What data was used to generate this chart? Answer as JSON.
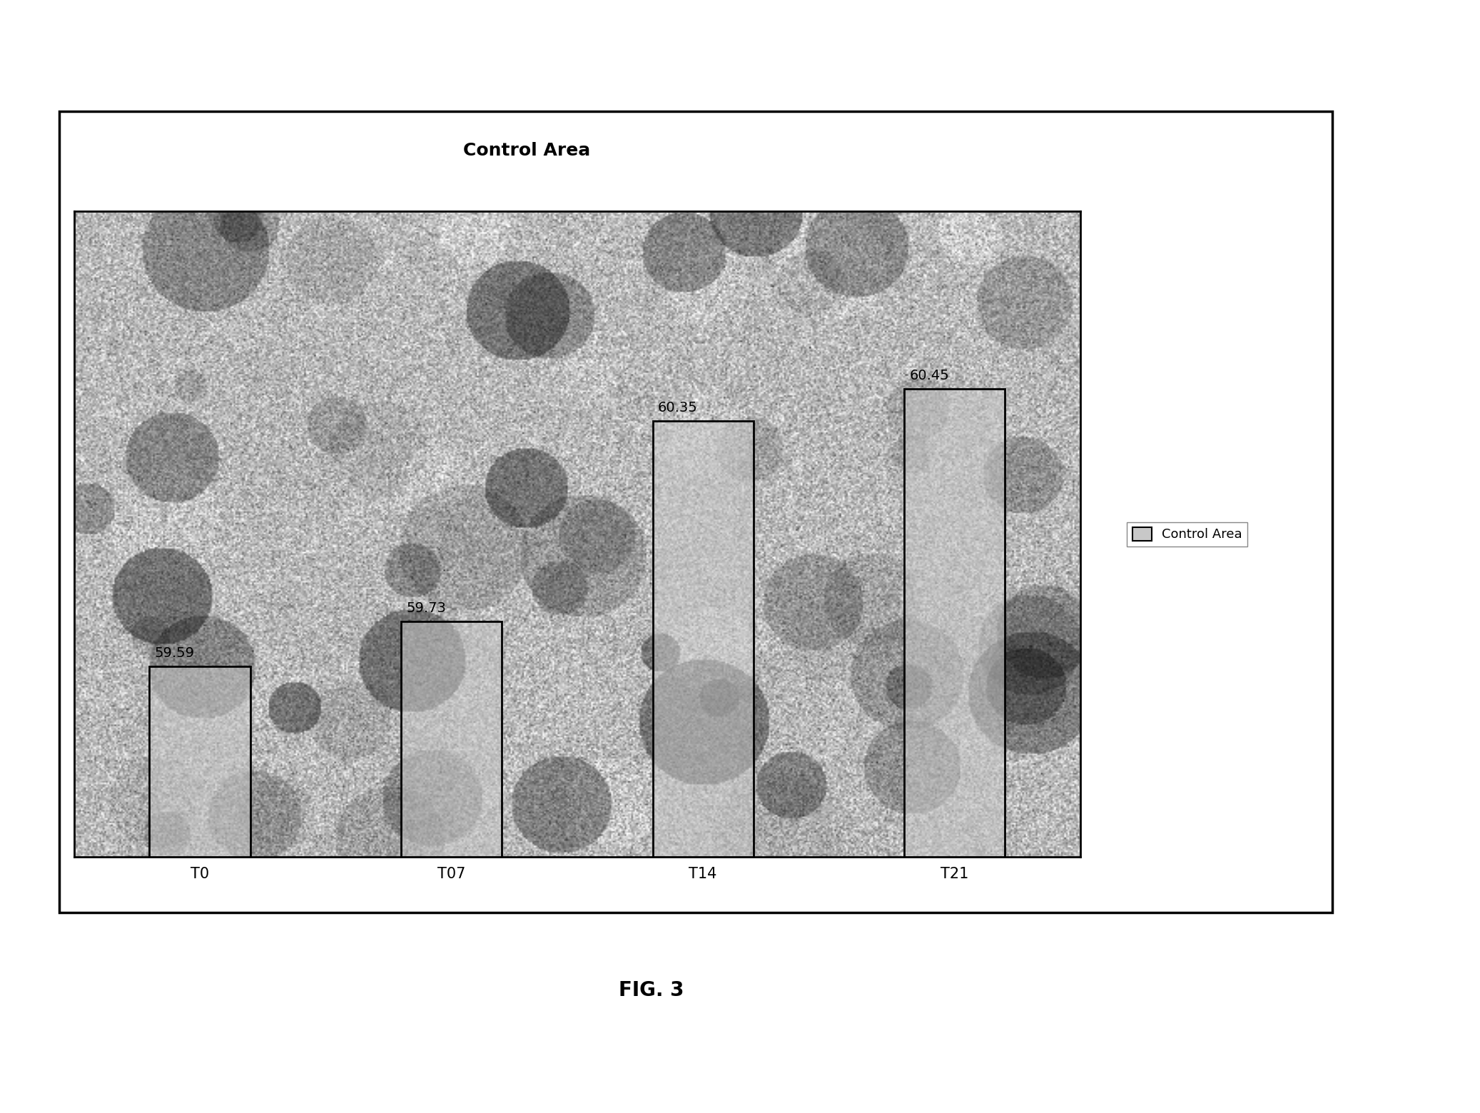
{
  "title": "Control Area",
  "categories": [
    "T0",
    "T07",
    "T14",
    "T21"
  ],
  "values": [
    59.59,
    59.73,
    60.35,
    60.45
  ],
  "bar_labels": [
    "59.59",
    "59.73",
    "60.35",
    "60.45"
  ],
  "ylim_min": 59.0,
  "ylim_max": 61.0,
  "legend_label": "Control Area",
  "fig_caption": "FIG. 3",
  "background_color": "#ffffff",
  "title_fontsize": 18,
  "label_fontsize": 14,
  "tick_fontsize": 15,
  "caption_fontsize": 20
}
